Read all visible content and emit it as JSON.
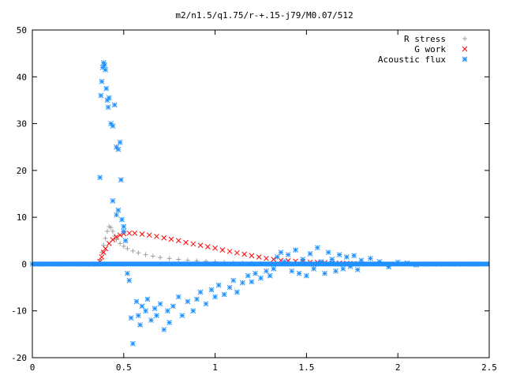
{
  "chart_data": {
    "type": "scatter",
    "title": "m2/n1.5/q1.75/r-+.15-j79/M0.07/512",
    "xlabel": "",
    "ylabel": "",
    "xlim": [
      0,
      2.5
    ],
    "ylim": [
      -20,
      50
    ],
    "xticks": [
      "0",
      "0.5",
      "1",
      "1.5",
      "2",
      "2.5"
    ],
    "yticks": [
      "-20",
      "-10",
      "0",
      "10",
      "20",
      "30",
      "40",
      "50"
    ],
    "legend_position": "top-right",
    "series": [
      {
        "name": "R stress",
        "marker": "plus",
        "color": "#a0a0a0",
        "points": [
          [
            0.05,
            0
          ],
          [
            0.15,
            0
          ],
          [
            0.25,
            0
          ],
          [
            0.35,
            0
          ],
          [
            0.37,
            1.0
          ],
          [
            0.38,
            2.5
          ],
          [
            0.39,
            4.0
          ],
          [
            0.4,
            5.5
          ],
          [
            0.41,
            7.0
          ],
          [
            0.42,
            8.0
          ],
          [
            0.43,
            7.8
          ],
          [
            0.44,
            7.0
          ],
          [
            0.45,
            6.0
          ],
          [
            0.46,
            5.2
          ],
          [
            0.48,
            4.4
          ],
          [
            0.5,
            3.8
          ],
          [
            0.52,
            3.3
          ],
          [
            0.55,
            2.8
          ],
          [
            0.58,
            2.4
          ],
          [
            0.62,
            2.0
          ],
          [
            0.66,
            1.7
          ],
          [
            0.7,
            1.4
          ],
          [
            0.75,
            1.2
          ],
          [
            0.8,
            1.0
          ],
          [
            0.85,
            0.8
          ],
          [
            0.9,
            0.7
          ],
          [
            0.95,
            0.6
          ],
          [
            1.0,
            0.5
          ],
          [
            1.05,
            0.4
          ],
          [
            1.1,
            0.3
          ],
          [
            1.15,
            0.25
          ],
          [
            1.2,
            0.2
          ],
          [
            1.25,
            0.15
          ],
          [
            1.3,
            0.1
          ],
          [
            1.4,
            0.05
          ],
          [
            1.5,
            0.02
          ],
          [
            1.7,
            0
          ],
          [
            1.9,
            0
          ],
          [
            2.1,
            0
          ],
          [
            2.3,
            0
          ],
          [
            2.42,
            0
          ]
        ]
      },
      {
        "name": "G work",
        "marker": "cross",
        "color": "#ff0000",
        "points": [
          [
            0.37,
            0.5
          ],
          [
            0.38,
            1.5
          ],
          [
            0.39,
            2.5
          ],
          [
            0.4,
            3.3
          ],
          [
            0.42,
            4.4
          ],
          [
            0.44,
            5.2
          ],
          [
            0.46,
            5.8
          ],
          [
            0.48,
            6.2
          ],
          [
            0.5,
            6.5
          ],
          [
            0.53,
            6.6
          ],
          [
            0.56,
            6.6
          ],
          [
            0.6,
            6.4
          ],
          [
            0.64,
            6.2
          ],
          [
            0.68,
            5.9
          ],
          [
            0.72,
            5.6
          ],
          [
            0.76,
            5.3
          ],
          [
            0.8,
            5.0
          ],
          [
            0.84,
            4.6
          ],
          [
            0.88,
            4.3
          ],
          [
            0.92,
            4.0
          ],
          [
            0.96,
            3.7
          ],
          [
            1.0,
            3.4
          ],
          [
            1.04,
            3.0
          ],
          [
            1.08,
            2.7
          ],
          [
            1.12,
            2.4
          ],
          [
            1.16,
            2.1
          ],
          [
            1.2,
            1.8
          ],
          [
            1.24,
            1.5
          ],
          [
            1.28,
            1.2
          ],
          [
            1.32,
            1.0
          ],
          [
            1.36,
            0.8
          ],
          [
            1.4,
            0.7
          ],
          [
            1.44,
            0.6
          ],
          [
            1.48,
            0.5
          ],
          [
            1.52,
            0.4
          ],
          [
            1.56,
            0.35
          ],
          [
            1.6,
            0.3
          ],
          [
            1.64,
            0.25
          ],
          [
            1.68,
            0.2
          ],
          [
            1.72,
            0.15
          ],
          [
            1.76,
            0.1
          ],
          [
            1.8,
            0.05
          ]
        ]
      },
      {
        "name": "Acoustic flux",
        "marker": "star",
        "color": "#1e90ff",
        "points": [
          [
            0.0,
            0
          ],
          [
            0.05,
            0
          ],
          [
            0.1,
            0
          ],
          [
            0.15,
            0
          ],
          [
            0.2,
            0
          ],
          [
            0.25,
            0
          ],
          [
            0.3,
            0
          ],
          [
            0.35,
            0
          ],
          [
            0.37,
            18.5
          ],
          [
            0.375,
            36.0
          ],
          [
            0.38,
            39.0
          ],
          [
            0.385,
            42.0
          ],
          [
            0.39,
            43.0
          ],
          [
            0.395,
            42.5
          ],
          [
            0.4,
            41.5
          ],
          [
            0.405,
            37.5
          ],
          [
            0.41,
            35.0
          ],
          [
            0.415,
            33.5
          ],
          [
            0.42,
            35.5
          ],
          [
            0.43,
            30.0
          ],
          [
            0.44,
            29.5
          ],
          [
            0.45,
            34.0
          ],
          [
            0.46,
            25.0
          ],
          [
            0.47,
            24.5
          ],
          [
            0.48,
            26.0
          ],
          [
            0.485,
            18.0
          ],
          [
            0.44,
            13.5
          ],
          [
            0.46,
            10.5
          ],
          [
            0.47,
            11.5
          ],
          [
            0.49,
            9.5
          ],
          [
            0.5,
            8.0
          ],
          [
            0.5,
            7.0
          ],
          [
            0.51,
            5.0
          ],
          [
            0.52,
            -2.0
          ],
          [
            0.53,
            -3.5
          ],
          [
            0.54,
            -11.5
          ],
          [
            0.55,
            -17.0
          ],
          [
            0.57,
            -8.0
          ],
          [
            0.58,
            -11.0
          ],
          [
            0.59,
            -13.0
          ],
          [
            0.6,
            -9.0
          ],
          [
            0.62,
            -10.0
          ],
          [
            0.63,
            -7.5
          ],
          [
            0.65,
            -12.0
          ],
          [
            0.67,
            -9.5
          ],
          [
            0.68,
            -11.0
          ],
          [
            0.7,
            -8.5
          ],
          [
            0.72,
            -14.0
          ],
          [
            0.74,
            -10.0
          ],
          [
            0.75,
            -12.5
          ],
          [
            0.77,
            -9.0
          ],
          [
            0.8,
            -7.0
          ],
          [
            0.82,
            -11.0
          ],
          [
            0.85,
            -8.0
          ],
          [
            0.88,
            -10.0
          ],
          [
            0.9,
            -7.5
          ],
          [
            0.92,
            -6.0
          ],
          [
            0.95,
            -8.5
          ],
          [
            0.98,
            -5.5
          ],
          [
            1.0,
            -7.0
          ],
          [
            1.02,
            -4.5
          ],
          [
            1.05,
            -6.5
          ],
          [
            1.08,
            -5.0
          ],
          [
            1.1,
            -3.5
          ],
          [
            1.12,
            -6.0
          ],
          [
            1.15,
            -4.0
          ],
          [
            1.18,
            -2.5
          ],
          [
            1.2,
            -3.8
          ],
          [
            1.22,
            -2.0
          ],
          [
            1.25,
            -3.0
          ],
          [
            1.28,
            -1.5
          ],
          [
            1.3,
            -2.5
          ],
          [
            1.32,
            -1.0
          ],
          [
            1.34,
            1.5
          ],
          [
            1.36,
            2.5
          ],
          [
            1.38,
            0.5
          ],
          [
            1.4,
            2.0
          ],
          [
            1.42,
            -1.5
          ],
          [
            1.44,
            3.0
          ],
          [
            1.46,
            -2.0
          ],
          [
            1.48,
            1.0
          ],
          [
            1.5,
            -2.5
          ],
          [
            1.52,
            2.2
          ],
          [
            1.54,
            -1.0
          ],
          [
            1.56,
            3.5
          ],
          [
            1.58,
            0.5
          ],
          [
            1.6,
            -2.0
          ],
          [
            1.62,
            2.5
          ],
          [
            1.64,
            1.0
          ],
          [
            1.66,
            -1.5
          ],
          [
            1.68,
            2.0
          ],
          [
            1.7,
            -1.0
          ],
          [
            1.72,
            1.5
          ],
          [
            1.74,
            -0.5
          ],
          [
            1.76,
            1.8
          ],
          [
            1.78,
            -1.2
          ],
          [
            1.8,
            0.8
          ],
          [
            1.85,
            1.2
          ],
          [
            1.9,
            0.5
          ],
          [
            1.95,
            -0.6
          ],
          [
            2.0,
            0.4
          ],
          [
            2.05,
            0.2
          ],
          [
            2.1,
            -0.2
          ],
          [
            2.15,
            0
          ],
          [
            2.2,
            0
          ],
          [
            2.25,
            0
          ],
          [
            2.3,
            0
          ],
          [
            2.35,
            0
          ],
          [
            2.4,
            0
          ],
          [
            2.43,
            0
          ]
        ]
      }
    ]
  }
}
